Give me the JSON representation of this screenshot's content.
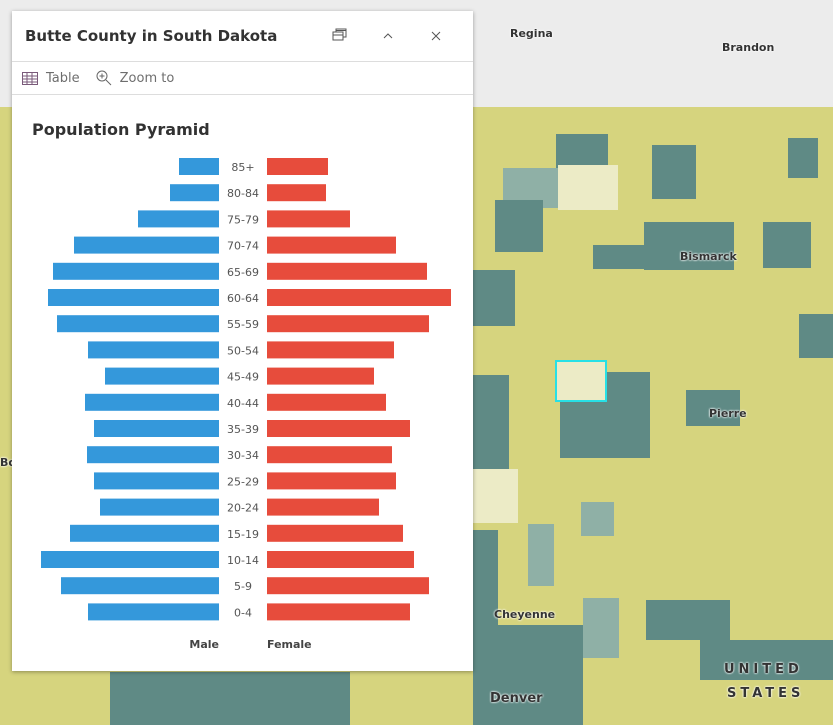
{
  "map": {
    "labels": [
      "Regina",
      "Brandon",
      "Bismarck",
      "Pierre",
      "Cheyenne",
      "Denver",
      "UNITED",
      "STATES",
      "Bois"
    ]
  },
  "panel": {
    "title": "Butte County in South Dakota",
    "buttons": {
      "dock": "dock-icon",
      "collapse": "chevron-up-icon",
      "close": "close-icon"
    },
    "toolbar": {
      "table_label": "Table",
      "zoom_label": "Zoom to"
    }
  },
  "chart_data": {
    "type": "bar",
    "title": "Population Pyramid",
    "orientation": "horizontal-pyramid",
    "categories": [
      "85+",
      "80-84",
      "75-79",
      "70-74",
      "65-69",
      "60-64",
      "55-59",
      "50-54",
      "45-49",
      "40-44",
      "35-39",
      "30-34",
      "25-29",
      "20-24",
      "15-19",
      "10-14",
      "5-9",
      "0-4"
    ],
    "series": [
      {
        "name": "Male",
        "color": "#3498db",
        "values": [
          40,
          49,
          81,
          145,
          166,
          171,
          162,
          131,
          114,
          134,
          125,
          132,
          125,
          119,
          149,
          178,
          158,
          131
        ]
      },
      {
        "name": "Female",
        "color": "#e74c3c",
        "values": [
          61,
          59,
          83,
          129,
          160,
          184,
          162,
          127,
          107,
          119,
          143,
          125,
          129,
          112,
          136,
          147,
          162,
          143
        ]
      }
    ],
    "value_note_units": "relative",
    "grid": false
  }
}
